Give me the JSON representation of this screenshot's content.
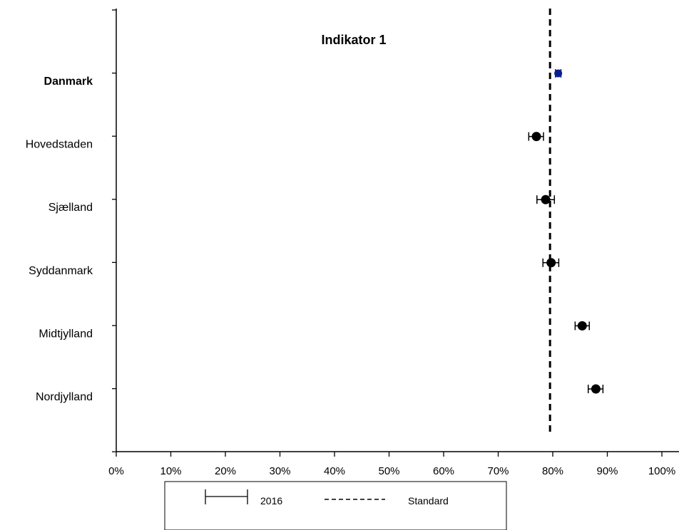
{
  "chart_data": {
    "type": "scatter",
    "title": "Indikator 1",
    "orientation": "horizontal",
    "categories": [
      "Danmark",
      "Hovedstaden",
      "Sjælland",
      "Syddanmark",
      "Midtjylland",
      "Nordjylland"
    ],
    "series": [
      {
        "name": "2016",
        "values": [
          81.0,
          77.0,
          78.7,
          79.7,
          85.4,
          87.9
        ],
        "ci_lower": [
          80.5,
          75.6,
          77.1,
          78.2,
          84.1,
          86.5
        ],
        "ci_upper": [
          81.5,
          78.3,
          80.3,
          81.1,
          86.7,
          89.2
        ]
      }
    ],
    "standard": 79.5,
    "xlim": [
      0,
      100
    ],
    "x_ticks": [
      "0%",
      "10%",
      "20%",
      "30%",
      "40%",
      "50%",
      "60%",
      "70%",
      "80%",
      "90%",
      "100%"
    ],
    "bold_categories": [
      "Danmark"
    ],
    "colors": {
      "highlight": "#0b1f8c",
      "points": "#000000",
      "standard_line": "#000000"
    },
    "legend": {
      "items": [
        "2016",
        "Standard"
      ],
      "position": "bottom"
    }
  }
}
